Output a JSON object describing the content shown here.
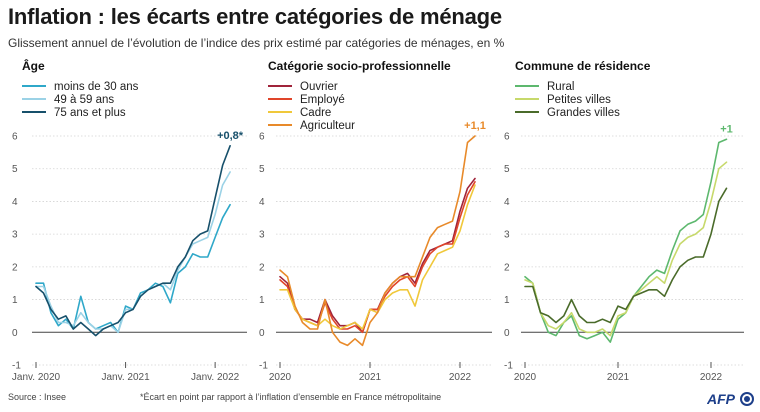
{
  "title": "Inflation : les écarts entre catégories de ménage",
  "subtitle": "Glissement annuel de l’évolution de l’indice des prix estimé par catégories de ménages, en %",
  "source": "Source : Insee",
  "footnote": "*Écart en point par rapport à l’inflation d’ensemble en France métropolitaine",
  "logo_text": "AFP",
  "chart_data": [
    {
      "type": "line",
      "title": "Âge",
      "ylim": [
        -1,
        6
      ],
      "yticks": [
        -1,
        0,
        1,
        2,
        3,
        4,
        5,
        6
      ],
      "xlim": [
        0,
        28
      ],
      "xticks": [
        {
          "pos": 0,
          "label": "Janv. 2020"
        },
        {
          "pos": 12,
          "label": "Janv. 2021"
        },
        {
          "pos": 24,
          "label": "Janv. 2022"
        }
      ],
      "annotation": {
        "text": "+0,8*",
        "color": "#17506b"
      },
      "series": [
        {
          "name": "moins de 30 ans",
          "color": "#2fa8c9",
          "values": [
            1.5,
            1.5,
            0.6,
            0.2,
            0.4,
            0.1,
            1.1,
            0.3,
            0.1,
            0.2,
            0.3,
            0.0,
            0.8,
            0.7,
            1.2,
            1.3,
            1.5,
            1.4,
            0.9,
            1.8,
            2.0,
            2.4,
            2.3,
            2.3,
            2.9,
            3.5,
            3.9
          ]
        },
        {
          "name": "49 à 59 ans",
          "color": "#9bd2e6",
          "values": [
            1.4,
            1.4,
            0.8,
            0.3,
            0.3,
            0.2,
            0.6,
            0.3,
            0.1,
            0.1,
            0.2,
            0.0,
            0.7,
            0.7,
            1.1,
            1.3,
            1.4,
            1.5,
            1.3,
            1.9,
            2.3,
            2.7,
            2.8,
            2.9,
            3.6,
            4.5,
            4.9
          ]
        },
        {
          "name": "75 ans et plus",
          "color": "#17506b",
          "values": [
            1.4,
            1.2,
            0.7,
            0.4,
            0.5,
            0.1,
            0.3,
            0.1,
            -0.1,
            0.1,
            0.2,
            0.3,
            0.6,
            0.7,
            1.1,
            1.3,
            1.4,
            1.5,
            1.5,
            2.0,
            2.3,
            2.8,
            3.0,
            3.1,
            4.1,
            5.1,
            5.7
          ]
        }
      ]
    },
    {
      "type": "line",
      "title": "Catégorie socio-professionnelle",
      "ylim": [
        -1,
        6
      ],
      "yticks": [
        -1,
        0,
        1,
        2,
        3,
        4,
        5,
        6
      ],
      "xlim": [
        0,
        28
      ],
      "xticks": [
        {
          "pos": 0,
          "label": "2020"
        },
        {
          "pos": 12,
          "label": "2021"
        },
        {
          "pos": 24,
          "label": "2022"
        }
      ],
      "annotation": {
        "text": "+1,1",
        "color": "#e88a2a"
      },
      "series": [
        {
          "name": "Ouvrier",
          "color": "#a0243a",
          "values": [
            1.7,
            1.5,
            0.7,
            0.4,
            0.4,
            0.3,
            1.0,
            0.5,
            0.2,
            0.2,
            0.3,
            0.0,
            0.7,
            0.7,
            1.2,
            1.5,
            1.7,
            1.8,
            1.5,
            2.1,
            2.5,
            2.6,
            2.7,
            2.8,
            3.7,
            4.4,
            4.7
          ]
        },
        {
          "name": "Employé",
          "color": "#e0452a",
          "values": [
            1.6,
            1.4,
            0.7,
            0.4,
            0.3,
            0.2,
            0.9,
            0.4,
            0.1,
            0.1,
            0.2,
            0.0,
            0.7,
            0.7,
            1.1,
            1.4,
            1.6,
            1.7,
            1.4,
            2.0,
            2.4,
            2.6,
            2.7,
            2.7,
            3.5,
            4.2,
            4.6
          ]
        },
        {
          "name": "Cadre",
          "color": "#f0c83a",
          "values": [
            1.3,
            1.3,
            0.7,
            0.4,
            0.3,
            0.2,
            0.4,
            0.2,
            0.1,
            0.2,
            0.3,
            0.1,
            0.7,
            0.6,
            1.0,
            1.2,
            1.3,
            1.3,
            0.8,
            1.6,
            2.0,
            2.4,
            2.5,
            2.6,
            3.1,
            3.9,
            4.5
          ]
        },
        {
          "name": "Agriculteur",
          "color": "#e88a2a",
          "values": [
            1.9,
            1.7,
            0.8,
            0.3,
            0.1,
            0.1,
            1.0,
            0.0,
            -0.3,
            -0.4,
            -0.2,
            -0.4,
            0.3,
            0.6,
            1.2,
            1.5,
            1.7,
            1.7,
            1.7,
            2.3,
            2.9,
            3.2,
            3.3,
            3.4,
            4.3,
            5.8,
            6.0
          ]
        }
      ]
    },
    {
      "type": "line",
      "title": "Commune de résidence",
      "ylim": [
        -1,
        6
      ],
      "yticks": [
        -1,
        0,
        1,
        2,
        3,
        4,
        5,
        6
      ],
      "xlim": [
        0,
        28
      ],
      "xticks": [
        {
          "pos": 0,
          "label": "2020"
        },
        {
          "pos": 12,
          "label": "2021"
        },
        {
          "pos": 24,
          "label": "2022"
        }
      ],
      "annotation": {
        "text": "+1",
        "color": "#5db86e"
      },
      "series": [
        {
          "name": "Rural",
          "color": "#5db86e",
          "values": [
            1.7,
            1.5,
            0.6,
            0.0,
            -0.1,
            0.3,
            0.5,
            -0.1,
            -0.2,
            -0.1,
            0.0,
            -0.3,
            0.4,
            0.6,
            1.1,
            1.4,
            1.7,
            1.9,
            1.8,
            2.5,
            3.1,
            3.3,
            3.4,
            3.6,
            4.6,
            5.8,
            5.9
          ]
        },
        {
          "name": "Petites villes",
          "color": "#c7d96b",
          "values": [
            1.6,
            1.5,
            0.6,
            0.2,
            0.1,
            0.3,
            0.6,
            0.1,
            0.0,
            0.0,
            0.1,
            -0.1,
            0.5,
            0.6,
            1.1,
            1.3,
            1.5,
            1.7,
            1.5,
            2.2,
            2.7,
            2.9,
            3.0,
            3.2,
            4.0,
            5.0,
            5.2
          ]
        },
        {
          "name": "Grandes villes",
          "color": "#4a6b2a",
          "values": [
            1.4,
            1.4,
            0.6,
            0.5,
            0.3,
            0.5,
            1.0,
            0.5,
            0.3,
            0.3,
            0.4,
            0.3,
            0.8,
            0.7,
            1.1,
            1.2,
            1.3,
            1.3,
            1.1,
            1.6,
            2.0,
            2.2,
            2.3,
            2.3,
            3.0,
            4.0,
            4.4
          ]
        }
      ]
    }
  ]
}
